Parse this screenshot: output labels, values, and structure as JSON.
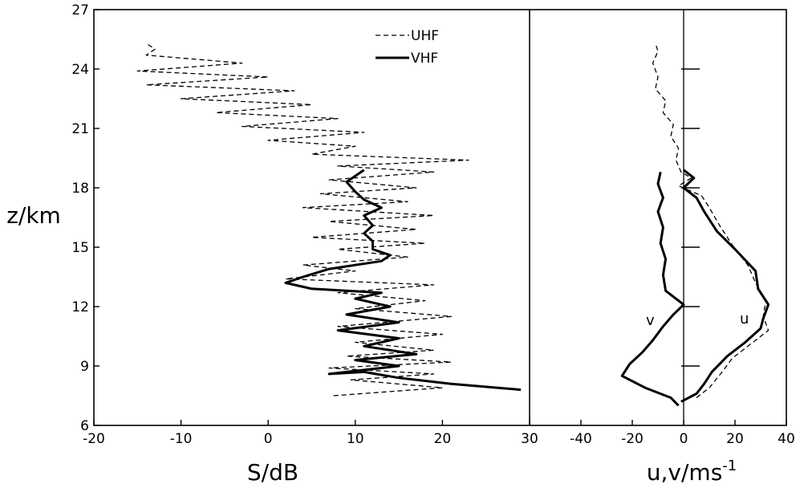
{
  "chart_data": [
    {
      "type": "line",
      "xlabel": "S/dB",
      "ylabel": "z/km",
      "xlim": [
        -20,
        30
      ],
      "ylim": [
        6,
        27
      ],
      "xticks": [
        "-20",
        "-10",
        "0",
        "10",
        "20",
        "30"
      ],
      "yticks": [
        "6",
        "9",
        "12",
        "15",
        "18",
        "21",
        "24",
        "27"
      ],
      "legend": "top-right",
      "series": [
        {
          "name": "UHF",
          "style": "dashed",
          "points": [
            [
              7.5,
              7.5
            ],
            [
              20,
              7.9
            ],
            [
              9.5,
              8.3
            ],
            [
              19,
              8.6
            ],
            [
              7,
              8.9
            ],
            [
              21,
              9.2
            ],
            [
              9,
              9.5
            ],
            [
              19,
              9.8
            ],
            [
              10,
              10.2
            ],
            [
              20,
              10.6
            ],
            [
              8,
              11
            ],
            [
              21,
              11.5
            ],
            [
              10,
              11.9
            ],
            [
              18,
              12.3
            ],
            [
              8,
              12.7
            ],
            [
              19,
              13.1
            ],
            [
              2,
              13.4
            ],
            [
              10,
              13.8
            ],
            [
              4,
              14.1
            ],
            [
              16,
              14.5
            ],
            [
              8,
              14.9
            ],
            [
              18,
              15.2
            ],
            [
              5,
              15.5
            ],
            [
              17,
              15.9
            ],
            [
              7,
              16.3
            ],
            [
              19,
              16.6
            ],
            [
              4,
              17
            ],
            [
              16,
              17.3
            ],
            [
              6,
              17.7
            ],
            [
              17,
              18
            ],
            [
              7,
              18.4
            ],
            [
              19,
              18.8
            ],
            [
              8,
              19.1
            ],
            [
              23,
              19.4
            ],
            [
              5,
              19.7
            ],
            [
              10,
              20.1
            ],
            [
              0,
              20.4
            ],
            [
              11,
              20.8
            ],
            [
              -3,
              21.1
            ],
            [
              8,
              21.5
            ],
            [
              -6,
              21.8
            ],
            [
              5,
              22.2
            ],
            [
              -10,
              22.5
            ],
            [
              3,
              22.9
            ],
            [
              -14,
              23.2
            ],
            [
              0,
              23.6
            ],
            [
              -15,
              23.9
            ],
            [
              -3,
              24.3
            ],
            [
              -14,
              24.7
            ],
            [
              -13,
              25
            ],
            [
              -14,
              25.3
            ]
          ]
        },
        {
          "name": "VHF",
          "style": "solid",
          "points": [
            [
              29,
              7.8
            ],
            [
              21,
              8.1
            ],
            [
              15,
              8.4
            ],
            [
              11,
              8.7
            ],
            [
              7,
              8.6
            ],
            [
              15,
              9
            ],
            [
              10,
              9.3
            ],
            [
              17,
              9.6
            ],
            [
              11,
              10
            ],
            [
              15,
              10.4
            ],
            [
              8,
              10.8
            ],
            [
              15,
              11.2
            ],
            [
              9,
              11.6
            ],
            [
              14,
              12
            ],
            [
              10,
              12.4
            ],
            [
              13,
              12.7
            ],
            [
              5,
              12.9
            ],
            [
              2,
              13.2
            ],
            [
              4,
              13.5
            ],
            [
              7,
              13.9
            ],
            [
              10,
              14.1
            ],
            [
              13,
              14.3
            ],
            [
              14,
              14.6
            ],
            [
              12,
              14.9
            ],
            [
              12,
              15.3
            ],
            [
              11,
              15.7
            ],
            [
              12,
              16.1
            ],
            [
              11,
              16.6
            ],
            [
              13,
              17
            ],
            [
              11,
              17.4
            ],
            [
              10,
              17.8
            ],
            [
              9,
              18.3
            ],
            [
              10,
              18.6
            ],
            [
              11,
              18.9
            ]
          ]
        }
      ]
    },
    {
      "type": "line",
      "xlabel": "u,v/ms",
      "xlabel_sup": "-1",
      "xlim": [
        -60,
        40
      ],
      "ylim": [
        6,
        27
      ],
      "xticks": [
        "-40",
        "-20",
        "0",
        "20",
        "40"
      ],
      "yticks_right": [
        "9",
        "12",
        "15",
        "18",
        "21",
        "24"
      ],
      "series": [
        {
          "name": "v",
          "style": "solid",
          "points": [
            [
              -2,
              7
            ],
            [
              -5,
              7.4
            ],
            [
              -15,
              7.9
            ],
            [
              -24,
              8.5
            ],
            [
              -21,
              9.1
            ],
            [
              -16,
              9.7
            ],
            [
              -12,
              10.3
            ],
            [
              -8,
              11
            ],
            [
              -4,
              11.6
            ],
            [
              0,
              12.1
            ],
            [
              -7,
              12.8
            ],
            [
              -8,
              13.6
            ],
            [
              -7,
              14.4
            ],
            [
              -9,
              15.2
            ],
            [
              -8,
              16
            ],
            [
              -10,
              16.8
            ],
            [
              -8,
              17.5
            ],
            [
              -10,
              18.2
            ],
            [
              -9,
              18.8
            ]
          ]
        },
        {
          "name": "u",
          "style": "solid",
          "points": [
            [
              -1,
              7.2
            ],
            [
              5,
              7.6
            ],
            [
              8,
              8.1
            ],
            [
              11,
              8.7
            ],
            [
              17,
              9.5
            ],
            [
              24,
              10.2
            ],
            [
              30,
              10.9
            ],
            [
              31,
              11.4
            ],
            [
              33,
              12.1
            ],
            [
              29,
              12.9
            ],
            [
              28,
              13.8
            ],
            [
              20,
              14.9
            ],
            [
              13,
              15.8
            ],
            [
              8,
              16.8
            ],
            [
              5,
              17.5
            ],
            [
              0,
              18
            ],
            [
              4,
              18.5
            ],
            [
              0,
              18.9
            ]
          ]
        },
        {
          "name": "",
          "style": "dashed",
          "points": [
            [
              5,
              7.4
            ],
            [
              10,
              7.9
            ],
            [
              15,
              8.7
            ],
            [
              19,
              9.4
            ],
            [
              26,
              10.1
            ],
            [
              33,
              10.8
            ],
            [
              31,
              11.5
            ],
            [
              32,
              12.3
            ],
            [
              28,
              13.2
            ],
            [
              25,
              14.1
            ],
            [
              19,
              15.1
            ],
            [
              14,
              16.1
            ],
            [
              10,
              17
            ],
            [
              7,
              17.6
            ],
            [
              -2,
              18.1
            ],
            [
              3,
              18.5
            ],
            [
              -1,
              18.8
            ],
            [
              -3,
              19.4
            ],
            [
              -2,
              20
            ],
            [
              -5,
              20.6
            ],
            [
              -4,
              21.2
            ],
            [
              -8,
              21.8
            ],
            [
              -7,
              22.4
            ],
            [
              -11,
              23
            ],
            [
              -10,
              23.6
            ],
            [
              -12,
              24.3
            ],
            [
              -10,
              24.9
            ],
            [
              -11,
              25.3
            ]
          ]
        }
      ],
      "annotations": [
        "v",
        "u"
      ]
    }
  ]
}
